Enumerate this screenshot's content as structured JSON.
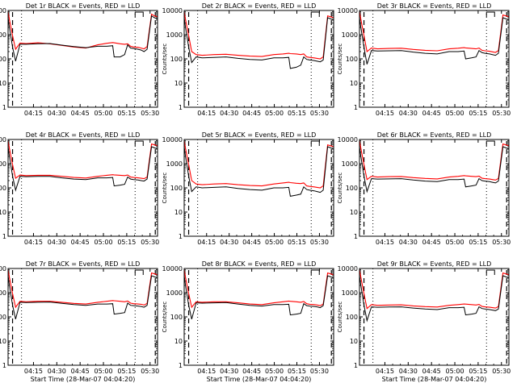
{
  "colors": {
    "events": "#000000",
    "lld": "#ff0000",
    "axis": "#000000",
    "background": "#ffffff"
  },
  "shared": {
    "ylabel": "Counts/sec",
    "xlabel": "Start Time (28-Mar-07 04:04:20)",
    "yticks": [
      "1",
      "10",
      "100",
      "1000",
      "10000"
    ],
    "xticks_a": [
      "04:15",
      "04:30",
      "04:45",
      "05:00",
      "05:15",
      "05:30"
    ],
    "xticks_b": [
      "04:15",
      "04:30",
      "04:45",
      "05:00",
      "05:15",
      "05:30"
    ]
  },
  "chart_data": [
    {
      "type": "line",
      "title": "Det 1r BLACK = Events, RED = LLD",
      "xlabel": "",
      "ylabel": "Counts/sec",
      "yscale": "log",
      "ylim": [
        1,
        10000
      ],
      "xticks": "a",
      "x": [
        0,
        1,
        3,
        5,
        8,
        12,
        20,
        28,
        36,
        44,
        52,
        60,
        66,
        70,
        71,
        75,
        78,
        80,
        82,
        84,
        87,
        89,
        91,
        93,
        96,
        98,
        100
      ],
      "series": [
        {
          "name": "Events",
          "color": "#000000",
          "values": [
            5000,
            1800,
            300,
            80,
            400,
            400,
            420,
            430,
            370,
            320,
            290,
            330,
            330,
            350,
            120,
            120,
            150,
            380,
            280,
            270,
            250,
            230,
            200,
            250,
            6000,
            5000,
            4500
          ]
        },
        {
          "name": "LLD",
          "color": "#ff0000",
          "values": [
            9000,
            4000,
            900,
            250,
            450,
            430,
            460,
            420,
            360,
            310,
            280,
            380,
            440,
            470,
            460,
            420,
            400,
            420,
            330,
            310,
            300,
            280,
            260,
            320,
            7000,
            6000,
            5500
          ]
        }
      ]
    },
    {
      "type": "line",
      "title": "Det 2r BLACK = Events, RED = LLD",
      "xlabel": "",
      "ylabel": "Counts/sec",
      "yscale": "log",
      "ylim": [
        1,
        10000
      ],
      "xticks": "b",
      "x": [
        0,
        1,
        3,
        5,
        8,
        12,
        20,
        28,
        36,
        44,
        52,
        60,
        66,
        70,
        71,
        75,
        78,
        80,
        82,
        84,
        87,
        89,
        91,
        93,
        96,
        98,
        100
      ],
      "series": [
        {
          "name": "Events",
          "color": "#000000",
          "values": [
            5000,
            1800,
            300,
            70,
            120,
            110,
            115,
            120,
            105,
            95,
            90,
            110,
            110,
            115,
            40,
            45,
            55,
            120,
            95,
            90,
            85,
            80,
            75,
            90,
            5000,
            4500,
            4000
          ]
        },
        {
          "name": "LLD",
          "color": "#ff0000",
          "values": [
            9000,
            4000,
            900,
            200,
            150,
            140,
            150,
            155,
            140,
            130,
            125,
            150,
            160,
            170,
            165,
            160,
            150,
            160,
            120,
            115,
            110,
            105,
            100,
            120,
            6000,
            5500,
            5000
          ]
        }
      ]
    },
    {
      "type": "line",
      "title": "Det 3r BLACK = Events, RED = LLD",
      "xlabel": "",
      "ylabel": "Counts/sec",
      "yscale": "log",
      "ylim": [
        1,
        10000
      ],
      "xticks": "a",
      "x": [
        0,
        1,
        3,
        5,
        8,
        12,
        20,
        28,
        36,
        44,
        52,
        60,
        66,
        70,
        71,
        75,
        78,
        80,
        82,
        84,
        87,
        89,
        91,
        93,
        96,
        98,
        100
      ],
      "series": [
        {
          "name": "Events",
          "color": "#000000",
          "values": [
            5000,
            1800,
            300,
            60,
            220,
            210,
            215,
            220,
            190,
            170,
            160,
            200,
            200,
            210,
            100,
            110,
            120,
            220,
            180,
            170,
            160,
            150,
            140,
            170,
            5000,
            4500,
            4000
          ]
        },
        {
          "name": "LLD",
          "color": "#ff0000",
          "values": [
            9000,
            4000,
            900,
            200,
            280,
            260,
            270,
            275,
            245,
            225,
            215,
            260,
            275,
            290,
            285,
            270,
            260,
            280,
            225,
            215,
            205,
            195,
            185,
            220,
            6500,
            6000,
            5500
          ]
        }
      ]
    },
    {
      "type": "line",
      "title": "Det 4r BLACK = Events, RED = LLD",
      "xlabel": "",
      "ylabel": "Counts/sec",
      "yscale": "log",
      "ylim": [
        1,
        10000
      ],
      "xticks": "a",
      "x": [
        0,
        1,
        3,
        5,
        8,
        12,
        20,
        28,
        36,
        44,
        52,
        60,
        66,
        70,
        71,
        75,
        78,
        80,
        82,
        84,
        87,
        89,
        91,
        93,
        96,
        98,
        100
      ],
      "series": [
        {
          "name": "Events",
          "color": "#000000",
          "values": [
            5000,
            1800,
            300,
            80,
            300,
            290,
            300,
            300,
            260,
            230,
            220,
            260,
            260,
            270,
            120,
            130,
            140,
            280,
            230,
            220,
            210,
            200,
            190,
            230,
            5000,
            4500,
            4000
          ]
        },
        {
          "name": "LLD",
          "color": "#ff0000",
          "values": [
            9000,
            4000,
            900,
            250,
            340,
            320,
            330,
            330,
            300,
            270,
            255,
            300,
            330,
            350,
            345,
            330,
            320,
            340,
            280,
            270,
            260,
            250,
            240,
            280,
            6500,
            6000,
            5500
          ]
        }
      ]
    },
    {
      "type": "line",
      "title": "Det 5r BLACK = Events, RED = LLD",
      "xlabel": "",
      "ylabel": "Counts/sec",
      "yscale": "log",
      "ylim": [
        1,
        10000
      ],
      "xticks": "b",
      "x": [
        0,
        1,
        3,
        5,
        8,
        12,
        20,
        28,
        36,
        44,
        52,
        60,
        66,
        70,
        71,
        75,
        78,
        80,
        82,
        84,
        87,
        89,
        91,
        93,
        96,
        98,
        100
      ],
      "series": [
        {
          "name": "Events",
          "color": "#000000",
          "values": [
            5000,
            1800,
            300,
            70,
            110,
            100,
            105,
            110,
            95,
            85,
            80,
            100,
            100,
            105,
            45,
            50,
            55,
            110,
            85,
            80,
            75,
            70,
            65,
            80,
            5000,
            4500,
            4000
          ]
        },
        {
          "name": "LLD",
          "color": "#ff0000",
          "values": [
            9000,
            4000,
            900,
            200,
            145,
            135,
            145,
            150,
            135,
            125,
            120,
            145,
            160,
            170,
            165,
            155,
            150,
            160,
            120,
            115,
            110,
            105,
            100,
            120,
            6000,
            5500,
            5000
          ]
        }
      ]
    },
    {
      "type": "line",
      "title": "Det 6r BLACK = Events, RED = LLD",
      "xlabel": "",
      "ylabel": "Counts/sec",
      "yscale": "log",
      "ylim": [
        1,
        10000
      ],
      "xticks": "a",
      "x": [
        0,
        1,
        3,
        5,
        8,
        12,
        20,
        28,
        36,
        44,
        52,
        60,
        66,
        70,
        71,
        75,
        78,
        80,
        82,
        84,
        87,
        89,
        91,
        93,
        96,
        98,
        100
      ],
      "series": [
        {
          "name": "Events",
          "color": "#000000",
          "values": [
            5000,
            1800,
            300,
            70,
            240,
            230,
            235,
            240,
            210,
            190,
            180,
            220,
            220,
            230,
            110,
            120,
            130,
            240,
            200,
            190,
            180,
            170,
            160,
            190,
            5000,
            4500,
            4000
          ]
        },
        {
          "name": "LLD",
          "color": "#ff0000",
          "values": [
            9000,
            4000,
            900,
            220,
            300,
            280,
            290,
            295,
            265,
            245,
            235,
            280,
            300,
            320,
            315,
            300,
            290,
            305,
            250,
            240,
            230,
            220,
            210,
            245,
            6500,
            6000,
            5500
          ]
        }
      ]
    },
    {
      "type": "line",
      "title": "Det 7r BLACK = Events, RED = LLD",
      "xlabel": "Start Time (28-Mar-07 04:04:20)",
      "ylabel": "Counts/sec",
      "yscale": "log",
      "ylim": [
        1,
        10000
      ],
      "xticks": "a",
      "x": [
        0,
        1,
        3,
        5,
        8,
        12,
        20,
        28,
        36,
        44,
        52,
        60,
        66,
        70,
        71,
        75,
        78,
        80,
        82,
        84,
        87,
        89,
        91,
        93,
        96,
        98,
        100
      ],
      "series": [
        {
          "name": "Events",
          "color": "#000000",
          "values": [
            5000,
            1800,
            300,
            80,
            400,
            390,
            400,
            410,
            360,
            320,
            300,
            340,
            340,
            350,
            130,
            140,
            150,
            370,
            300,
            290,
            280,
            270,
            250,
            300,
            5000,
            4500,
            4000
          ]
        },
        {
          "name": "LLD",
          "color": "#ff0000",
          "values": [
            9000,
            4000,
            900,
            250,
            440,
            420,
            440,
            440,
            400,
            360,
            340,
            400,
            440,
            470,
            465,
            440,
            420,
            450,
            370,
            350,
            340,
            330,
            310,
            360,
            6500,
            6000,
            5500
          ]
        }
      ]
    },
    {
      "type": "line",
      "title": "Det 8r BLACK = Events, RED = LLD",
      "xlabel": "Start Time (28-Mar-07 04:04:20)",
      "ylabel": "Counts/sec",
      "yscale": "log",
      "ylim": [
        1,
        10000
      ],
      "xticks": "b",
      "x": [
        0,
        1,
        3,
        5,
        8,
        12,
        20,
        28,
        36,
        44,
        52,
        60,
        66,
        70,
        71,
        75,
        78,
        80,
        82,
        84,
        87,
        89,
        91,
        93,
        96,
        98,
        100
      ],
      "series": [
        {
          "name": "Events",
          "color": "#000000",
          "values": [
            5000,
            1800,
            300,
            80,
            380,
            370,
            380,
            390,
            340,
            300,
            280,
            320,
            320,
            330,
            120,
            130,
            140,
            350,
            290,
            280,
            270,
            260,
            240,
            290,
            5000,
            4500,
            4000
          ]
        },
        {
          "name": "LLD",
          "color": "#ff0000",
          "values": [
            9000,
            4000,
            900,
            250,
            420,
            400,
            420,
            420,
            380,
            340,
            320,
            380,
            420,
            450,
            440,
            420,
            400,
            430,
            350,
            330,
            320,
            310,
            290,
            340,
            6500,
            6000,
            5500
          ]
        }
      ]
    },
    {
      "type": "line",
      "title": "Det 9r BLACK = Events, RED = LLD",
      "xlabel": "Start Time (28-Mar-07 04:04:20)",
      "ylabel": "Counts/sec",
      "yscale": "log",
      "ylim": [
        1,
        10000
      ],
      "xticks": "a",
      "x": [
        0,
        1,
        3,
        5,
        8,
        12,
        20,
        28,
        36,
        44,
        52,
        60,
        66,
        70,
        71,
        75,
        78,
        80,
        82,
        84,
        87,
        89,
        91,
        93,
        96,
        98,
        100
      ],
      "series": [
        {
          "name": "Events",
          "color": "#000000",
          "values": [
            5000,
            1800,
            300,
            70,
            260,
            250,
            255,
            260,
            230,
            210,
            200,
            240,
            240,
            250,
            120,
            130,
            140,
            260,
            220,
            210,
            200,
            190,
            180,
            210,
            5000,
            4500,
            4000
          ]
        },
        {
          "name": "LLD",
          "color": "#ff0000",
          "values": [
            9000,
            4000,
            900,
            220,
            320,
            300,
            310,
            315,
            285,
            265,
            255,
            300,
            320,
            340,
            335,
            320,
            310,
            325,
            270,
            260,
            250,
            240,
            230,
            265,
            6500,
            6000,
            5500
          ]
        }
      ]
    }
  ]
}
